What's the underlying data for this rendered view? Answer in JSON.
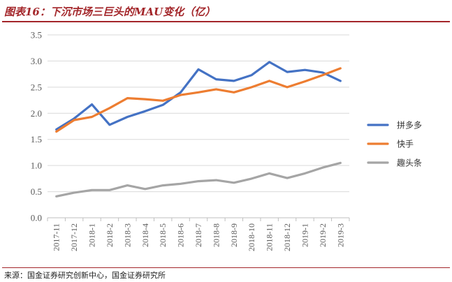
{
  "title": "图表16：下沉市场三巨头的MAU变化（亿）",
  "source": "来源：国金证券研究创新中心，国金证券研究所",
  "chart_data": {
    "type": "line",
    "title": "图表16：下沉市场三巨头的MAU变化（亿）",
    "xlabel": "",
    "ylabel": "",
    "categories": [
      "2017-11",
      "2017-12",
      "2018-1",
      "2018-2",
      "2018-3",
      "2018-4",
      "2018-5",
      "2018-6",
      "2018-7",
      "2018-8",
      "2018-9",
      "2018-10",
      "2018-11",
      "2018-12",
      "2019-1",
      "2019-2",
      "2019-3"
    ],
    "ylim": [
      0,
      3.5
    ],
    "yticks": [
      "0.0",
      "0.5",
      "1.0",
      "1.5",
      "2.0",
      "2.5",
      "3.0",
      "3.5"
    ],
    "grid": "horizontal",
    "legend": "right",
    "series": [
      {
        "name": "拼多多",
        "color": "#4472c4",
        "values": [
          1.69,
          1.9,
          2.17,
          1.78,
          1.93,
          2.04,
          2.16,
          2.4,
          2.84,
          2.65,
          2.62,
          2.73,
          2.98,
          2.79,
          2.83,
          2.78,
          2.62
        ]
      },
      {
        "name": "快手",
        "color": "#ed7d31",
        "values": [
          1.65,
          1.87,
          1.93,
          2.1,
          2.29,
          2.27,
          2.24,
          2.35,
          2.4,
          2.46,
          2.4,
          2.5,
          2.62,
          2.5,
          2.61,
          2.73,
          2.86
        ]
      },
      {
        "name": "趣头条",
        "color": "#a5a5a5",
        "values": [
          0.41,
          0.48,
          0.53,
          0.53,
          0.62,
          0.55,
          0.62,
          0.65,
          0.7,
          0.72,
          0.67,
          0.75,
          0.85,
          0.76,
          0.85,
          0.96,
          1.05
        ]
      }
    ]
  }
}
